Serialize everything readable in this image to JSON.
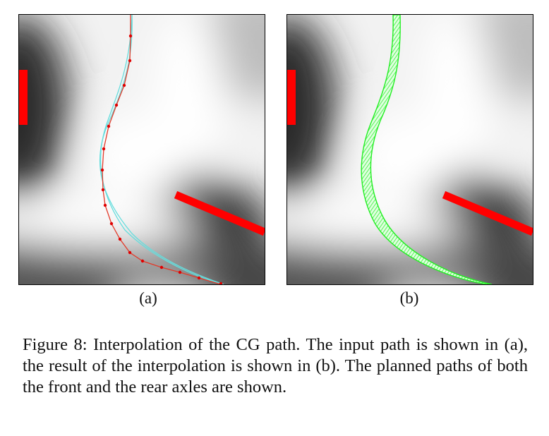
{
  "figure": {
    "panels": [
      {
        "id": "a",
        "label": "(a)"
      },
      {
        "id": "b",
        "label": "(b)"
      }
    ],
    "caption": "Figure 8:  Interpolation of the CG path.  The input path is shown in (a), the result of the interpolation is shown in (b). The planned paths of both the front and the rear axles are shown.",
    "colors": {
      "obstacle": "#ff0000",
      "input_path": "#e23a2a",
      "interpolated_path": "#22ee22",
      "axle_path": "#66dddd"
    }
  }
}
